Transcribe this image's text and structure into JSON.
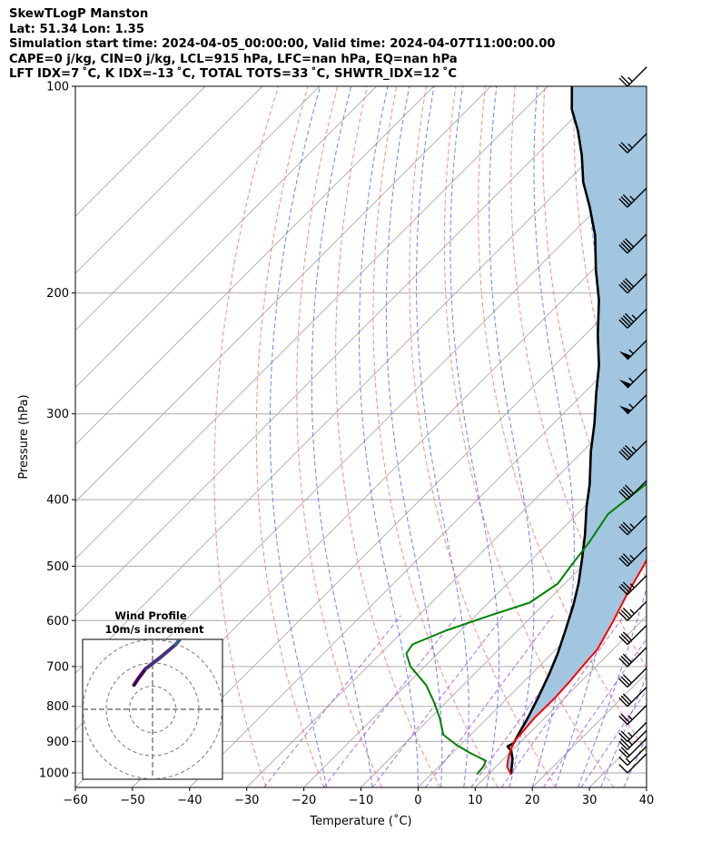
{
  "header": {
    "line1": "SkewTLogP Manston",
    "line2": "Lat: 51.34   Lon: 1.35",
    "line3": "Simulation start time: 2024-04-05_00:00:00, Valid time: 2024-04-07T11:00:00.00",
    "line4": "CAPE=0 j/kg, CIN=0 j/kg, LCL=915 hPa, LFC=nan hPa, EQ=nan hPa",
    "line5": "LFT IDX=7 ˚C, K IDX=-13 ˚C, TOTAL TOTS=33 ˚C, SHWTR_IDX=12 ˚C"
  },
  "chart_data": {
    "type": "line",
    "title": "SkewTLogP Manston",
    "xlabel": "Temperature (˚C)",
    "ylabel": "Pressure (hPa)",
    "x_ticks": [
      "−60",
      "−50",
      "−40",
      "−30",
      "−20",
      "−10",
      "0",
      "10",
      "20",
      "30",
      "40"
    ],
    "x_tick_values": [
      -60,
      -50,
      -40,
      -30,
      -20,
      -10,
      0,
      10,
      20,
      30,
      40
    ],
    "y_ticks": [
      "100",
      "200",
      "300",
      "400",
      "500",
      "600",
      "700",
      "800",
      "900",
      "1000"
    ],
    "y_tick_values": [
      100,
      200,
      300,
      400,
      500,
      600,
      700,
      800,
      900,
      1000
    ],
    "xlim": [
      -60,
      40
    ],
    "ylim": [
      1050,
      100
    ],
    "y_scale": "log",
    "skew": "45 degrees",
    "grid": true,
    "colors": {
      "temperature": "#ff0000",
      "dewpoint": "#008000",
      "parcel": "#000000",
      "cin_shading": "#a3c6e0",
      "dry_adiabats": "#ff6b6b",
      "moist_adiabats": "#5b6bff",
      "mixing_ratio": "#9b4dd6",
      "isotherms": "#aaaaaa"
    },
    "series": [
      {
        "name": "temperature",
        "points": [
          [
            14.0,
            1005
          ],
          [
            12.0,
            980
          ],
          [
            10.8,
            955
          ],
          [
            9.8,
            930
          ],
          [
            8.8,
            900
          ],
          [
            8.6,
            875
          ],
          [
            8.2,
            830
          ],
          [
            8.3,
            780
          ],
          [
            8.0,
            735
          ],
          [
            7.6,
            700
          ],
          [
            7.2,
            660
          ],
          [
            6.5,
            640
          ],
          [
            5.0,
            600
          ],
          [
            2.8,
            550
          ],
          [
            0.7,
            500
          ],
          [
            -1.3,
            460
          ],
          [
            -2.9,
            420
          ],
          [
            -3.8,
            380
          ],
          [
            -4.7,
            350
          ],
          [
            -5.6,
            335
          ],
          [
            -7.2,
            320
          ],
          [
            -9.4,
            300
          ],
          [
            -11.3,
            285
          ],
          [
            -10.3,
            270
          ],
          [
            -9.0,
            260
          ],
          [
            -8.0,
            240
          ],
          [
            -7.4,
            225
          ],
          [
            -7.5,
            210
          ],
          [
            -6.5,
            190
          ],
          [
            -5.2,
            173
          ],
          [
            -4.2,
            160
          ],
          [
            -3.3,
            148
          ],
          [
            -2.6,
            136
          ],
          [
            -2.2,
            125
          ],
          [
            -2.1,
            117
          ],
          [
            -2.0,
            110
          ],
          [
            -1.4,
            104
          ],
          [
            -1.0,
            100
          ]
        ],
        "values_units": "[temperature °C, pressure hPa]"
      },
      {
        "name": "dewpoint",
        "points": [
          [
            8.0,
            1005
          ],
          [
            7.8,
            980
          ],
          [
            7.2,
            960
          ],
          [
            3.0,
            935
          ],
          [
            -0.8,
            910
          ],
          [
            -4.8,
            880
          ],
          [
            -8.5,
            830
          ],
          [
            -12.5,
            785
          ],
          [
            -16.5,
            745
          ],
          [
            -22.5,
            700
          ],
          [
            -25.5,
            670
          ],
          [
            -26.0,
            650
          ],
          [
            -22.5,
            620
          ],
          [
            -17.5,
            590
          ],
          [
            -12.8,
            565
          ],
          [
            -11.2,
            530
          ],
          [
            -12.0,
            500
          ],
          [
            -13.0,
            460
          ],
          [
            -14.6,
            420
          ],
          [
            -13.2,
            380
          ],
          [
            -11.9,
            360
          ],
          [
            -14.9,
            335
          ],
          [
            -17.4,
            310
          ],
          [
            -19.0,
            285
          ],
          [
            -20.6,
            270
          ],
          [
            -22.0,
            260
          ],
          [
            -24.0,
            240
          ],
          [
            -25.7,
            220
          ],
          [
            -26.3,
            205
          ],
          [
            -25.4,
            190
          ],
          [
            -24.2,
            175
          ],
          [
            -24.8,
            160
          ],
          [
            -24.3,
            148
          ],
          [
            -21.7,
            133
          ],
          [
            -17.5,
            122
          ],
          [
            -13.5,
            111
          ],
          [
            -9.5,
            100
          ]
        ],
        "values_units": "[temperature °C, pressure hPa]"
      },
      {
        "name": "parcel",
        "points": [
          [
            14.0,
            1005
          ],
          [
            12.8,
            980
          ],
          [
            11.6,
            955
          ],
          [
            10.0,
            930
          ],
          [
            8.5,
            915
          ],
          [
            9.0,
            905
          ],
          [
            8.3,
            880
          ],
          [
            7.0,
            830
          ],
          [
            5.4,
            780
          ],
          [
            3.2,
            720
          ],
          [
            1.0,
            670
          ],
          [
            -1.7,
            620
          ],
          [
            -4.7,
            570
          ],
          [
            -7.6,
            530
          ],
          [
            -11.1,
            490
          ],
          [
            -15.0,
            450
          ],
          [
            -19.6,
            410
          ],
          [
            -23.0,
            380
          ],
          [
            -28.6,
            340
          ],
          [
            -32.8,
            310
          ],
          [
            -37.8,
            280
          ],
          [
            -42.2,
            255
          ],
          [
            -47.8,
            230
          ],
          [
            -53.6,
            205
          ],
          [
            -59.5,
            185
          ],
          [
            -65.6,
            165
          ],
          [
            -71.5,
            150
          ],
          [
            -77.0,
            138
          ],
          [
            -82.0,
            126
          ],
          [
            -87.0,
            116
          ],
          [
            -91.8,
            108
          ],
          [
            -95.8,
            100
          ]
        ],
        "values_units": "[temperature °C, pressure hPa]"
      }
    ],
    "wind_barbs": [
      {
        "p": 1000,
        "speed_kt": 10
      },
      {
        "p": 975,
        "speed_kt": 15
      },
      {
        "p": 950,
        "speed_kt": 20
      },
      {
        "p": 925,
        "speed_kt": 25
      },
      {
        "p": 900,
        "speed_kt": 25
      },
      {
        "p": 850,
        "speed_kt": 25
      },
      {
        "p": 800,
        "speed_kt": 30
      },
      {
        "p": 750,
        "speed_kt": 30
      },
      {
        "p": 700,
        "speed_kt": 30
      },
      {
        "p": 650,
        "speed_kt": 30
      },
      {
        "p": 600,
        "speed_kt": 35
      },
      {
        "p": 550,
        "speed_kt": 35
      },
      {
        "p": 500,
        "speed_kt": 35
      },
      {
        "p": 450,
        "speed_kt": 35
      },
      {
        "p": 400,
        "speed_kt": 40
      },
      {
        "p": 350,
        "speed_kt": 45
      },
      {
        "p": 300,
        "speed_kt": 55
      },
      {
        "p": 275,
        "speed_kt": 55
      },
      {
        "p": 250,
        "speed_kt": 55
      },
      {
        "p": 225,
        "speed_kt": 45
      },
      {
        "p": 200,
        "speed_kt": 40
      },
      {
        "p": 175,
        "speed_kt": 40
      },
      {
        "p": 150,
        "speed_kt": 35
      },
      {
        "p": 125,
        "speed_kt": 25
      },
      {
        "p": 100,
        "speed_kt": 25
      }
    ],
    "inset": {
      "title": "Wind Profile",
      "subtitle": "10m/s increment",
      "rings": [
        1,
        2,
        3
      ],
      "hodograph": [
        [
          -0.8,
          1.05
        ],
        [
          -0.6,
          1.35
        ],
        [
          -0.3,
          1.75
        ],
        [
          0.35,
          2.25
        ],
        [
          1.0,
          2.8
        ],
        [
          1.5,
          3.4
        ],
        [
          2.0,
          3.9
        ],
        [
          2.6,
          4.3
        ],
        [
          3.3,
          4.7
        ],
        [
          4.2,
          5.2
        ],
        [
          5.2,
          6.0
        ],
        [
          6.5,
          6.7
        ],
        [
          7.5,
          7.4
        ],
        [
          8.0,
          7.9
        ]
      ],
      "hodograph_colors": [
        "#440154",
        "#46327e",
        "#365c8d",
        "#277f8e",
        "#1fa187",
        "#4ac16d",
        "#a0da39",
        "#fde725"
      ]
    }
  }
}
